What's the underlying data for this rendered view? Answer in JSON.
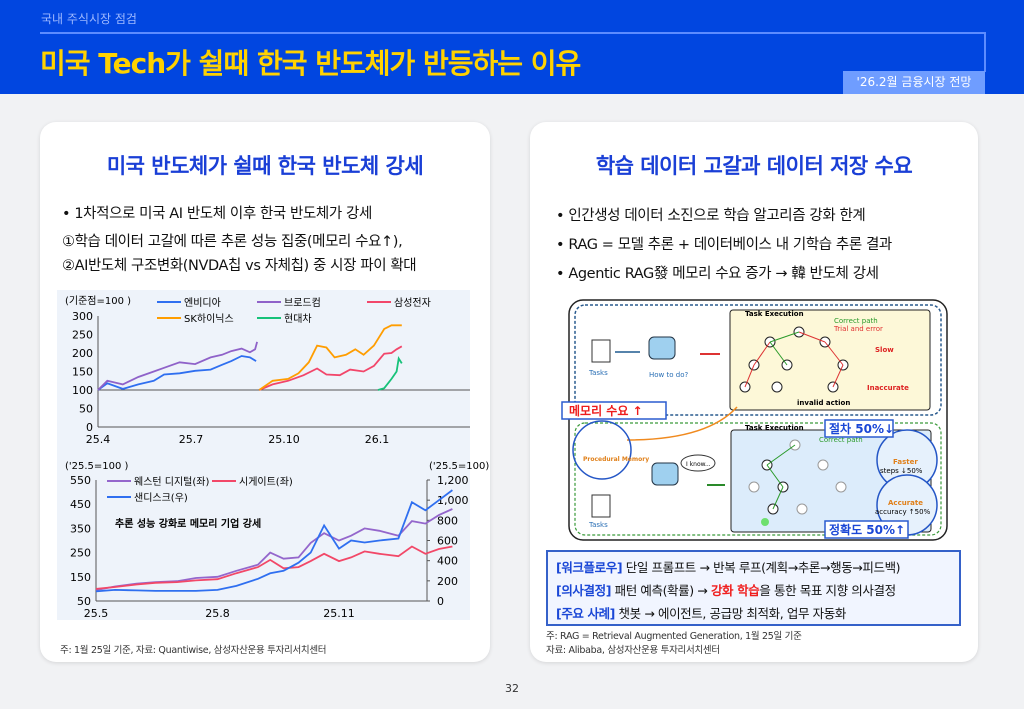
{
  "header": {
    "kicker": "국내 주식시장 점검",
    "title": "미국 Tech가 쉴때 한국 반도체가 반등하는 이유",
    "badge": "'26.2월 금융시장 전망"
  },
  "left": {
    "heading": "미국 반도체가 쉴때 한국 반도체 강세",
    "bullet1": "• 1차적으로 미국 AI 반도체 이후 한국 반도체가 강세",
    "line2": "①학습 데이터 고갈에 따른 추론 성능 집중(메모리 수요↑),",
    "line3": "②AI반도체 구조변화(NVDA칩 vs 자체칩) 중 시장 파이 확대",
    "source": "주: 1월 25일 기준, 자료: Quantiwise, 삼성자산운용 투자리서치센터"
  },
  "chart_data": [
    {
      "type": "line",
      "ylabel": "(기준점=100 )",
      "ylim": [
        0,
        300
      ],
      "yticks": [
        "0",
        "50",
        "100",
        "150",
        "200",
        "250",
        "300"
      ],
      "yvals": [
        0,
        50,
        100,
        150,
        200,
        250,
        300
      ],
      "xticks": [
        "25.4",
        "25.7",
        "25.10",
        "26.1"
      ],
      "xtickdates": [
        "2025-04-01",
        "2025-07-01",
        "2025-10-01",
        "2026-01-01"
      ],
      "xlim": [
        "2025-04-01",
        "2026-04-01"
      ],
      "legend": "top",
      "series": [
        {
          "name": "엔비디아",
          "color": "#2f6ff0",
          "points": [
            [
              "2025-04-01",
              100
            ],
            [
              "2025-04-10",
              118
            ],
            [
              "2025-04-25",
              103
            ],
            [
              "2025-05-10",
              115
            ],
            [
              "2025-05-25",
              125
            ],
            [
              "2025-06-05",
              142
            ],
            [
              "2025-06-20",
              145
            ],
            [
              "2025-07-05",
              152
            ],
            [
              "2025-07-20",
              155
            ],
            [
              "2025-08-01",
              168
            ],
            [
              "2025-08-10",
              178
            ],
            [
              "2025-08-20",
              192
            ],
            [
              "2025-08-28",
              188
            ],
            [
              "2025-09-04",
              178
            ]
          ]
        },
        {
          "name": "브로드컴",
          "color": "#8f62c9",
          "points": [
            [
              "2025-04-01",
              100
            ],
            [
              "2025-04-10",
              125
            ],
            [
              "2025-04-25",
              115
            ],
            [
              "2025-05-10",
              135
            ],
            [
              "2025-05-25",
              150
            ],
            [
              "2025-06-05",
              160
            ],
            [
              "2025-06-20",
              175
            ],
            [
              "2025-07-05",
              170
            ],
            [
              "2025-07-20",
              188
            ],
            [
              "2025-08-01",
              195
            ],
            [
              "2025-08-10",
              205
            ],
            [
              "2025-08-20",
              212
            ],
            [
              "2025-08-28",
              202
            ],
            [
              "2025-09-03",
              210
            ],
            [
              "2025-09-05",
              230
            ]
          ]
        },
        {
          "name": "삼성전자",
          "color": "#f2466a",
          "points": [
            [
              "2025-09-07",
              100
            ],
            [
              "2025-09-20",
              115
            ],
            [
              "2025-10-05",
              125
            ],
            [
              "2025-10-20",
              140
            ],
            [
              "2025-11-03",
              158
            ],
            [
              "2025-11-12",
              142
            ],
            [
              "2025-11-25",
              140
            ],
            [
              "2025-12-05",
              155
            ],
            [
              "2025-12-18",
              150
            ],
            [
              "2025-12-28",
              165
            ],
            [
              "2026-01-08",
              198
            ],
            [
              "2026-01-15",
              200
            ],
            [
              "2026-01-20",
              210
            ],
            [
              "2026-01-25",
              218
            ]
          ]
        },
        {
          "name": "SK하이닉스",
          "color": "#ff9d00",
          "points": [
            [
              "2025-09-07",
              100
            ],
            [
              "2025-09-20",
              125
            ],
            [
              "2025-10-05",
              130
            ],
            [
              "2025-10-15",
              145
            ],
            [
              "2025-10-25",
              175
            ],
            [
              "2025-11-03",
              220
            ],
            [
              "2025-11-12",
              215
            ],
            [
              "2025-11-20",
              188
            ],
            [
              "2025-12-01",
              195
            ],
            [
              "2025-12-10",
              210
            ],
            [
              "2025-12-18",
              195
            ],
            [
              "2025-12-28",
              220
            ],
            [
              "2026-01-08",
              265
            ],
            [
              "2026-01-15",
              275
            ],
            [
              "2026-01-25",
              275
            ]
          ]
        },
        {
          "name": "현대차",
          "color": "#17c27a",
          "points": [
            [
              "2026-01-02",
              100
            ],
            [
              "2026-01-08",
              105
            ],
            [
              "2026-01-15",
              130
            ],
            [
              "2026-01-20",
              150
            ],
            [
              "2026-01-22",
              185
            ],
            [
              "2026-01-25",
              172
            ]
          ]
        }
      ]
    },
    {
      "type": "line",
      "ylabel": "('25.5=100 )",
      "y2label": "('25.5=100)",
      "ylim": [
        50,
        550
      ],
      "y2lim": [
        0,
        1200
      ],
      "yticks": [
        "50",
        "150",
        "250",
        "350",
        "450",
        "550"
      ],
      "yvals": [
        50,
        150,
        250,
        350,
        450,
        550
      ],
      "y2ticks": [
        "0",
        "200",
        "400",
        "600",
        "800",
        "1,000",
        "1,200"
      ],
      "y2vals": [
        0,
        200,
        400,
        600,
        800,
        1000,
        1200
      ],
      "xticks": [
        "25.5",
        "25.8",
        "25.11"
      ],
      "xtickdates": [
        "2025-05-01",
        "2025-08-01",
        "2025-11-01"
      ],
      "xlim": [
        "2025-05-01",
        "2026-03-01"
      ],
      "annotation": "추론 성능 강화로 메모리 기업 강세",
      "legend": "top-left",
      "series": [
        {
          "name": "웨스턴 디지털(좌)",
          "axis": "left",
          "color": "#9466cc",
          "points": [
            [
              "2025-05-01",
              95
            ],
            [
              "2025-05-15",
              110
            ],
            [
              "2025-06-01",
              122
            ],
            [
              "2025-06-15",
              128
            ],
            [
              "2025-07-01",
              132
            ],
            [
              "2025-07-15",
              145
            ],
            [
              "2025-08-01",
              150
            ],
            [
              "2025-08-15",
              175
            ],
            [
              "2025-09-01",
              200
            ],
            [
              "2025-09-10",
              250
            ],
            [
              "2025-09-20",
              225
            ],
            [
              "2025-10-01",
              230
            ],
            [
              "2025-10-10",
              290
            ],
            [
              "2025-10-20",
              330
            ],
            [
              "2025-11-01",
              300
            ],
            [
              "2025-11-10",
              320
            ],
            [
              "2025-11-20",
              350
            ],
            [
              "2025-12-01",
              340
            ],
            [
              "2025-12-15",
              320
            ],
            [
              "2025-12-25",
              380
            ],
            [
              "2026-01-05",
              370
            ],
            [
              "2026-01-15",
              405
            ],
            [
              "2026-01-25",
              430
            ]
          ]
        },
        {
          "name": "시게이트(좌)",
          "axis": "left",
          "color": "#f24868",
          "points": [
            [
              "2025-05-01",
              100
            ],
            [
              "2025-05-15",
              108
            ],
            [
              "2025-06-01",
              118
            ],
            [
              "2025-06-15",
              125
            ],
            [
              "2025-07-01",
              128
            ],
            [
              "2025-07-15",
              135
            ],
            [
              "2025-08-01",
              140
            ],
            [
              "2025-08-15",
              165
            ],
            [
              "2025-09-01",
              190
            ],
            [
              "2025-09-10",
              220
            ],
            [
              "2025-09-20",
              185
            ],
            [
              "2025-10-01",
              190
            ],
            [
              "2025-10-10",
              215
            ],
            [
              "2025-10-20",
              245
            ],
            [
              "2025-11-01",
              215
            ],
            [
              "2025-11-10",
              230
            ],
            [
              "2025-11-20",
              255
            ],
            [
              "2025-12-01",
              245
            ],
            [
              "2025-12-15",
              235
            ],
            [
              "2025-12-25",
              275
            ],
            [
              "2026-01-05",
              245
            ],
            [
              "2026-01-15",
              265
            ],
            [
              "2026-01-25",
              275
            ]
          ]
        },
        {
          "name": "샌디스크(우)",
          "axis": "right",
          "color": "#2f6ff0",
          "points": [
            [
              "2025-05-01",
              95
            ],
            [
              "2025-05-15",
              110
            ],
            [
              "2025-06-01",
              105
            ],
            [
              "2025-06-15",
              100
            ],
            [
              "2025-07-01",
              100
            ],
            [
              "2025-07-15",
              100
            ],
            [
              "2025-08-01",
              110
            ],
            [
              "2025-08-15",
              150
            ],
            [
              "2025-09-01",
              220
            ],
            [
              "2025-09-10",
              275
            ],
            [
              "2025-09-20",
              300
            ],
            [
              "2025-10-01",
              380
            ],
            [
              "2025-10-10",
              480
            ],
            [
              "2025-10-20",
              750
            ],
            [
              "2025-11-01",
              520
            ],
            [
              "2025-11-10",
              600
            ],
            [
              "2025-11-20",
              580
            ],
            [
              "2025-12-01",
              600
            ],
            [
              "2025-12-15",
              620
            ],
            [
              "2025-12-25",
              980
            ],
            [
              "2026-01-05",
              900
            ],
            [
              "2026-01-15",
              1000
            ],
            [
              "2026-01-25",
              1100
            ]
          ]
        }
      ]
    }
  ],
  "right": {
    "heading": "학습 데이터 고갈과 데이터 저장 수요",
    "bullets": [
      "• 인간생성 데이터 소진으로 학습 알고리즘 강화 한계",
      "• RAG = 모델 추론 + 데이터베이스 내 기학습 추론 결과",
      "• Agentic RAG發 메모리 수요 증가 → 韓 반도체 강세"
    ],
    "diagram": {
      "task_execution": "Task Execution",
      "correct_path": "Correct path",
      "trial_error": "Trial and error",
      "tasks": "Tasks",
      "how_to_do": "How to do?",
      "slow": "Slow",
      "inaccurate": "Inaccurate",
      "invalid_action": "invalid action",
      "memory_demand": "메모리 수요 ↑",
      "procedural_memory": "Procedural Memory",
      "i_know": "I know...",
      "faster": "Faster",
      "steps": "steps ↓50%",
      "accurate": "Accurate",
      "accuracy": "accuracy ↑50%",
      "steps_down": "절차 50%↓",
      "accuracy_up": "정확도 50%↑"
    },
    "box": [
      {
        "key": "[워크플로우]",
        "text": " 단일 프롬프트 → 반복 루프(계획→추론→행동→피드백)"
      },
      {
        "key": "[의사결정]",
        "text": " 패턴 예측(확률) → ",
        "red": "강화 학습",
        "text2": "을 통한 목표 지향 의사결정"
      },
      {
        "key": "[주요 사례]",
        "text": " 챗봇 → 에이전트, 공급망 최적화, 업무 자동화"
      }
    ],
    "note1": "주: RAG = Retrieval Augmented Generation, 1월 25일 기준",
    "note2": "자료: Alibaba, 삼성자산운용 투자리서치센터"
  },
  "page_number": "32"
}
